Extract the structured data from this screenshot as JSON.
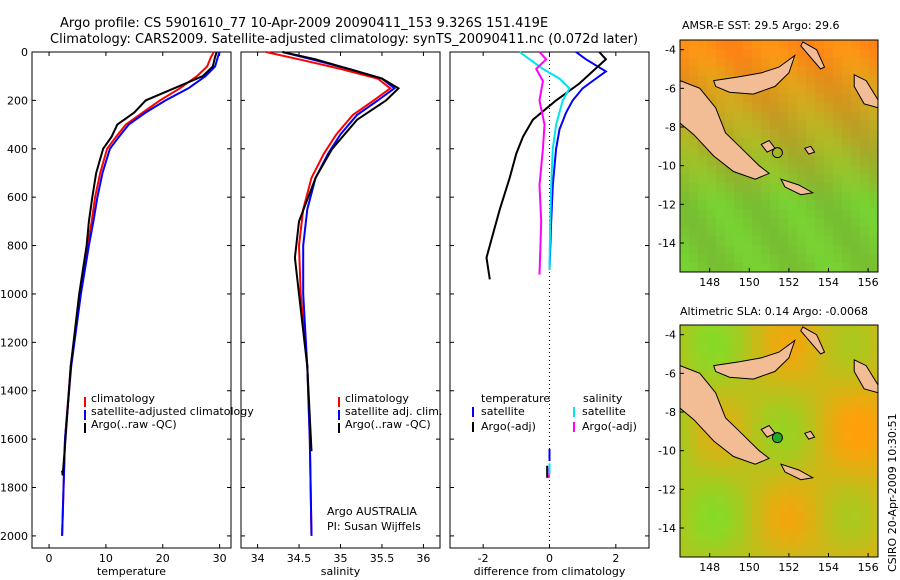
{
  "figure": {
    "title_line1": "Argo profile: CS 5901610_77 10-Apr-2009 20090411_153 9.326S 151.419E",
    "title_line2": "Climatology: CARS2009. Satellite-adjusted climatology: synTS_20090411.nc (0.072d later)",
    "side_caption": "CSIRO 20-Apr-2009 10:30:51"
  },
  "chart_data": [
    {
      "id": "temperature",
      "type": "line",
      "xlabel": "temperature",
      "ylabel": "",
      "xlim": [
        -3,
        32
      ],
      "ylim": [
        2050,
        0
      ],
      "x_ticks": [
        0,
        10,
        20,
        30
      ],
      "y_ticks": [
        0,
        200,
        400,
        600,
        800,
        1000,
        1200,
        1400,
        1600,
        1800,
        2000
      ],
      "legend_position": "lower-center",
      "legend": [
        "climatology",
        "satellite-adjusted climatology",
        "Argo(..raw -QC)"
      ],
      "series": [
        {
          "name": "climatology",
          "color": "#ff0000",
          "x": [
            29.0,
            28.5,
            27.8,
            26.0,
            23.0,
            19.5,
            16.5,
            13.5,
            11.8,
            10.2,
            9.0,
            8.1,
            7.5,
            6.8,
            5.5,
            3.8,
            2.8,
            2.3
          ],
          "y": [
            0,
            20,
            60,
            100,
            150,
            200,
            250,
            300,
            350,
            400,
            500,
            600,
            700,
            800,
            1000,
            1300,
            1600,
            2000
          ]
        },
        {
          "name": "satellite-adjusted climatology",
          "color": "#0000ff",
          "x": [
            30.0,
            29.7,
            29.2,
            27.5,
            24.5,
            20.5,
            17.0,
            14.0,
            12.3,
            10.7,
            9.4,
            8.5,
            7.8,
            7.0,
            5.6,
            3.9,
            2.8,
            2.3
          ],
          "y": [
            0,
            20,
            60,
            100,
            150,
            200,
            250,
            300,
            350,
            400,
            500,
            600,
            700,
            800,
            1000,
            1300,
            1600,
            2000
          ]
        },
        {
          "name": "Argo(..raw -QC)",
          "color": "#000000",
          "x": [
            29.5,
            29.2,
            28.8,
            27.0,
            22.0,
            17.0,
            15.0,
            12.0,
            11.0,
            9.5,
            8.3,
            7.6,
            7.0,
            6.6,
            5.3,
            3.8,
            2.9,
            2.4,
            2.3
          ],
          "y": [
            0,
            20,
            60,
            100,
            150,
            200,
            250,
            300,
            350,
            400,
            500,
            600,
            700,
            800,
            1000,
            1300,
            1600,
            1750,
            1730
          ]
        }
      ]
    },
    {
      "id": "salinity",
      "type": "line",
      "xlabel": "salinity",
      "ylabel": "",
      "xlim": [
        33.8,
        36.2
      ],
      "ylim": [
        2050,
        0
      ],
      "x_ticks": [
        34,
        34.5,
        35,
        35.5,
        36
      ],
      "y_ticks": [
        0,
        200,
        400,
        600,
        800,
        1000,
        1200,
        1400,
        1600,
        1800,
        2000
      ],
      "legend_position": "lower-center",
      "legend": [
        "climatology",
        "satellite adj. clim.",
        "Argo(..raw -QC)"
      ],
      "annotation_line1": "Argo AUSTRALIA",
      "annotation_line2": "PI: Susan Wijffels",
      "series": [
        {
          "name": "climatology",
          "color": "#ff0000",
          "x": [
            34.1,
            34.5,
            35.0,
            35.45,
            35.6,
            35.4,
            35.15,
            34.95,
            34.8,
            34.65,
            34.55,
            34.5,
            34.52,
            34.6,
            34.63,
            34.65
          ],
          "y": [
            0,
            30,
            70,
            110,
            150,
            200,
            260,
            340,
            420,
            520,
            650,
            800,
            1000,
            1300,
            1600,
            2000
          ]
        },
        {
          "name": "satellite adj. clim.",
          "color": "#0000ff",
          "x": [
            34.3,
            34.65,
            35.1,
            35.5,
            35.65,
            35.45,
            35.2,
            35.0,
            34.85,
            34.7,
            34.6,
            34.55,
            34.55,
            34.6,
            34.63,
            34.65
          ],
          "y": [
            0,
            30,
            70,
            110,
            150,
            200,
            260,
            340,
            420,
            520,
            650,
            800,
            1000,
            1300,
            1600,
            2000
          ]
        },
        {
          "name": "Argo(..raw -QC)",
          "color": "#000000",
          "x": [
            34.3,
            34.7,
            35.1,
            35.5,
            35.6,
            35.7,
            35.55,
            35.2,
            34.9,
            34.7,
            34.5,
            34.45,
            34.5,
            34.6,
            34.65
          ],
          "y": [
            0,
            30,
            70,
            110,
            130,
            150,
            200,
            280,
            400,
            520,
            700,
            850,
            1000,
            1300,
            1650
          ]
        }
      ]
    },
    {
      "id": "difference",
      "type": "line",
      "xlabel": "difference from climatology",
      "ylabel": "",
      "xlim": [
        -3.0,
        3.0
      ],
      "ylim": [
        2050,
        0
      ],
      "x_ticks": [
        -2,
        0,
        2
      ],
      "y_ticks": [
        0,
        200,
        400,
        600,
        800,
        1000,
        1200,
        1400,
        1600,
        1800,
        2000
      ],
      "zero_line": true,
      "legend_position": "lower-center",
      "legend_header_left": "temperature",
      "legend_header_right": "salinity",
      "legend": [
        "satellite",
        "Argo(-adj)",
        "satellite",
        "Argo(-adj)"
      ],
      "series": [
        {
          "name": "temperature satellite",
          "color": "#0000ff",
          "x": [
            0.8,
            1.1,
            1.7,
            1.3,
            1.0,
            0.7,
            0.5,
            0.3,
            0.2,
            0.1,
            0.05,
            0.0
          ],
          "y": [
            0,
            30,
            80,
            120,
            150,
            200,
            250,
            320,
            400,
            550,
            700,
            900
          ]
        },
        {
          "name": "temperature Argo(-adj)",
          "color": "#000000",
          "x": [
            1.5,
            1.7,
            1.3,
            0.9,
            0.2,
            -0.5,
            -0.8,
            -1.0,
            -1.2,
            -1.5,
            -1.7,
            -1.9,
            -1.8
          ],
          "y": [
            0,
            30,
            80,
            130,
            200,
            280,
            350,
            420,
            520,
            650,
            750,
            850,
            940
          ]
        },
        {
          "name": "salinity satellite",
          "color": "#00e5ee",
          "x": [
            -0.9,
            -0.6,
            -0.2,
            0.3,
            0.6,
            0.4,
            0.2,
            0.1,
            0.05,
            0.02,
            0.0
          ],
          "y": [
            0,
            30,
            70,
            110,
            150,
            200,
            300,
            400,
            550,
            700,
            900
          ]
        },
        {
          "name": "salinity Argo(-adj)",
          "color": "#ff00ff",
          "x": [
            -0.3,
            -0.1,
            -0.4,
            -0.2,
            -0.3,
            -0.15,
            -0.2,
            -0.3,
            -0.25,
            -0.3
          ],
          "y": [
            0,
            30,
            70,
            120,
            200,
            300,
            400,
            550,
            700,
            920
          ]
        }
      ]
    },
    {
      "id": "sst_map",
      "type": "heatmap",
      "title": "AMSR-E SST: 29.5 Argo: 29.6",
      "x_ticks": [
        148,
        150,
        152,
        154,
        156
      ],
      "y_ticks": [
        -4,
        -6,
        -8,
        -10,
        -12,
        -14
      ],
      "xlim": [
        146.5,
        156.5
      ],
      "ylim": [
        -15.5,
        -3.5
      ],
      "marker": {
        "lon": 151.419,
        "lat": -9.326
      }
    },
    {
      "id": "sla_map",
      "type": "heatmap",
      "title": "Altimetric SLA: 0.14 Argo: -0.0068",
      "x_ticks": [
        148,
        150,
        152,
        154,
        156
      ],
      "y_ticks": [
        -4,
        -6,
        -8,
        -10,
        -12,
        -14
      ],
      "xlim": [
        146.5,
        156.5
      ],
      "ylim": [
        -15.5,
        -3.5
      ],
      "marker": {
        "lon": 151.419,
        "lat": -9.326
      }
    }
  ]
}
